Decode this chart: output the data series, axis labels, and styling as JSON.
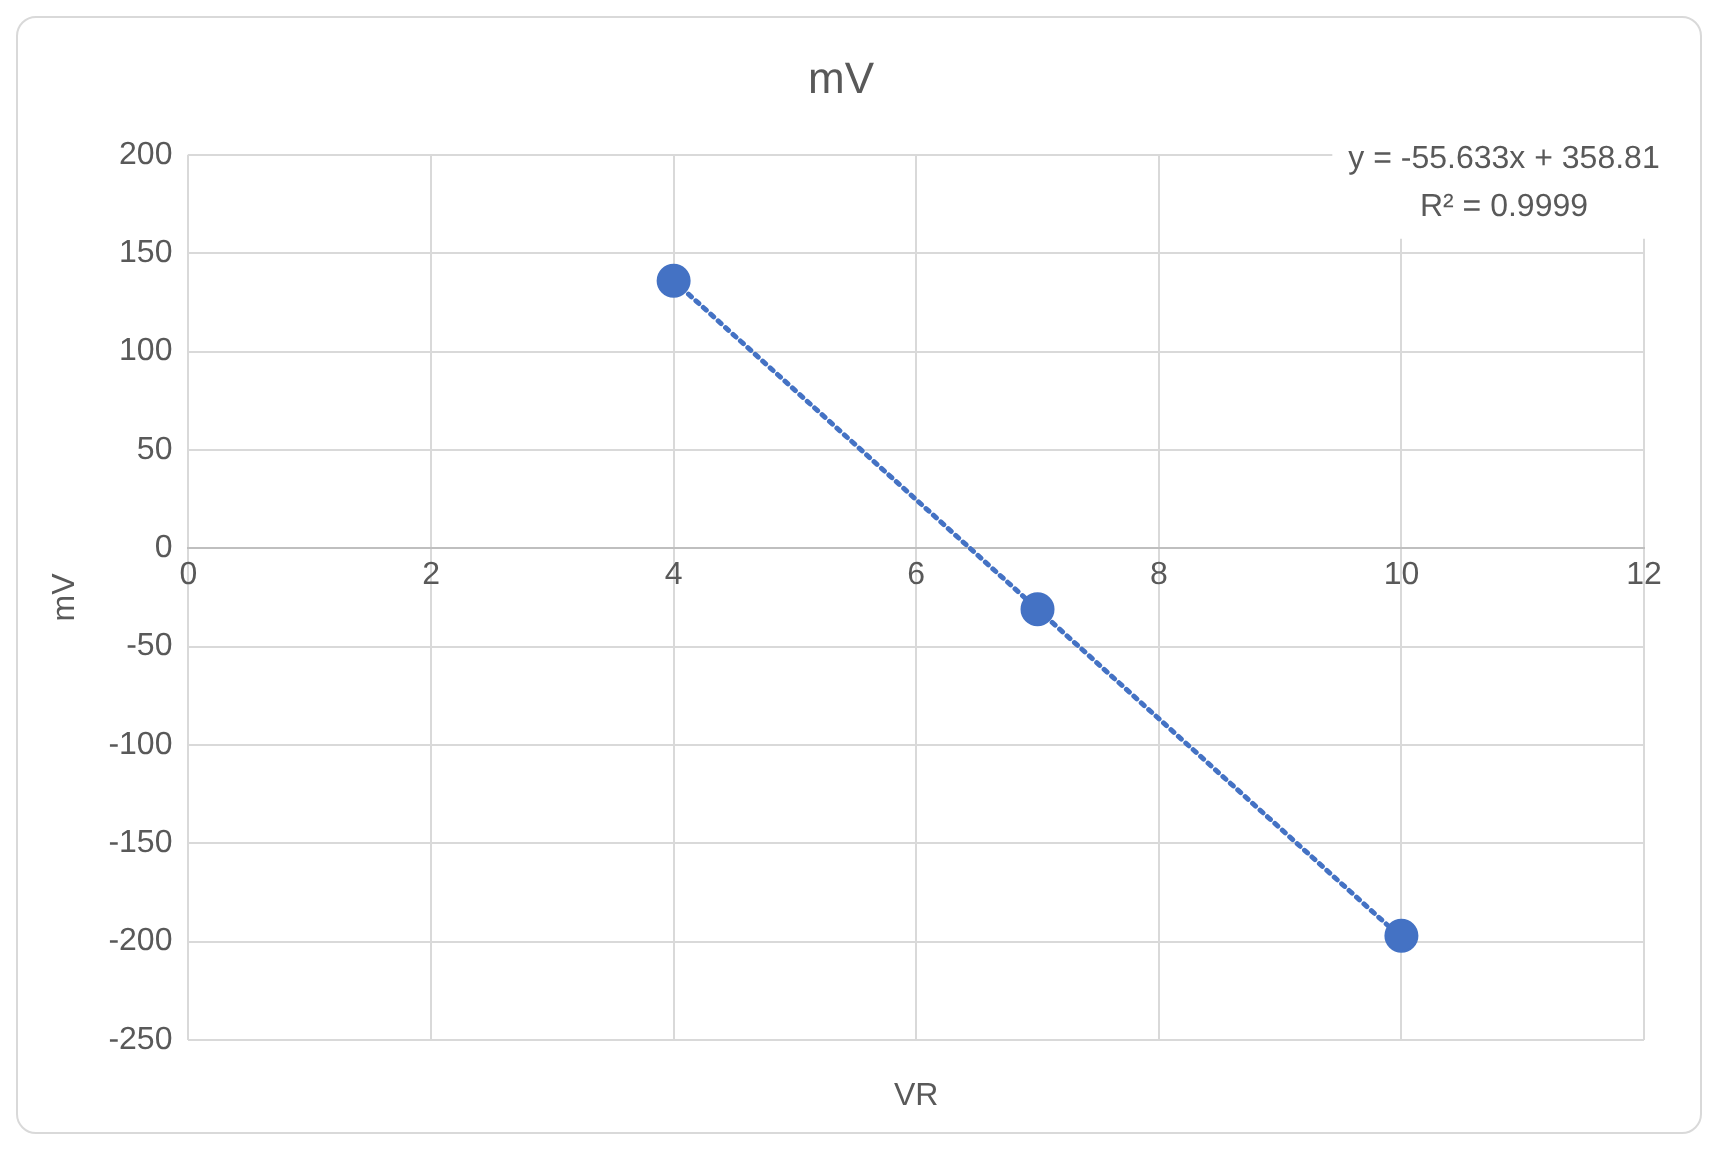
{
  "chart_data": {
    "type": "scatter",
    "title": "mV",
    "xlabel": "VR",
    "ylabel": "mV",
    "xlim": [
      0,
      12
    ],
    "xticks": [
      0,
      2,
      4,
      6,
      8,
      10,
      12
    ],
    "ylim": [
      -250,
      200
    ],
    "yticks": [
      -250,
      -200,
      -150,
      -100,
      -50,
      0,
      50,
      100,
      150,
      200
    ],
    "grid": true,
    "legend": false,
    "series": [
      {
        "color": "#4472c4",
        "marker": "circle",
        "x": [
          4,
          7,
          10
        ],
        "values": [
          136,
          -31,
          -197
        ]
      },
      {
        "type": "line",
        "color": "#4472c4",
        "line_style": "dotted",
        "x": [
          4,
          10
        ],
        "values": [
          136,
          -198
        ]
      }
    ],
    "annotations": [
      "y = -55.633x + 358.81",
      "R² = 0.9999"
    ]
  }
}
